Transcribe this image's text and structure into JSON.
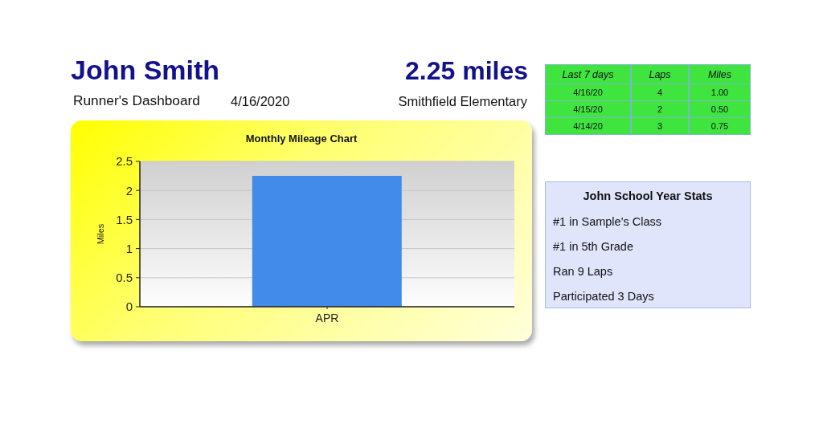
{
  "chart_data": [
    {
      "type": "other",
      "title": "John Smith",
      "subtitle": "Runner's Dashboard",
      "annotations": [
        "2.25 miles",
        "4/16/2020",
        "Smithfield Elementary"
      ]
    },
    {
      "type": "other",
      "ylabel": "Last 7 days",
      "categories": [
        "Laps",
        "Miles"
      ],
      "y_categories": [
        "4/16/20",
        "4/15/20",
        "4/14/20"
      ],
      "cell_labels": [
        [
          "4",
          "1.00"
        ],
        [
          "2",
          "0.50"
        ],
        [
          "3",
          "0.75"
        ]
      ]
    },
    {
      "type": "bar",
      "title": "Monthly Mileage Chart",
      "categories": [
        "APR"
      ],
      "values": [
        2.25
      ],
      "color": "#428bea",
      "ylabel": "Miles",
      "ylim": [
        0,
        2.5
      ],
      "yticks": [
        0,
        0.5,
        1,
        1.5,
        2,
        2.5
      ],
      "grid": "y"
    },
    {
      "type": "other",
      "title": "John School Year Stats",
      "annotations": [
        "#1 in Sample's Class",
        "#1 in 5th Grade",
        "Ran 9 Laps",
        "Participated 3 Days"
      ]
    }
  ]
}
